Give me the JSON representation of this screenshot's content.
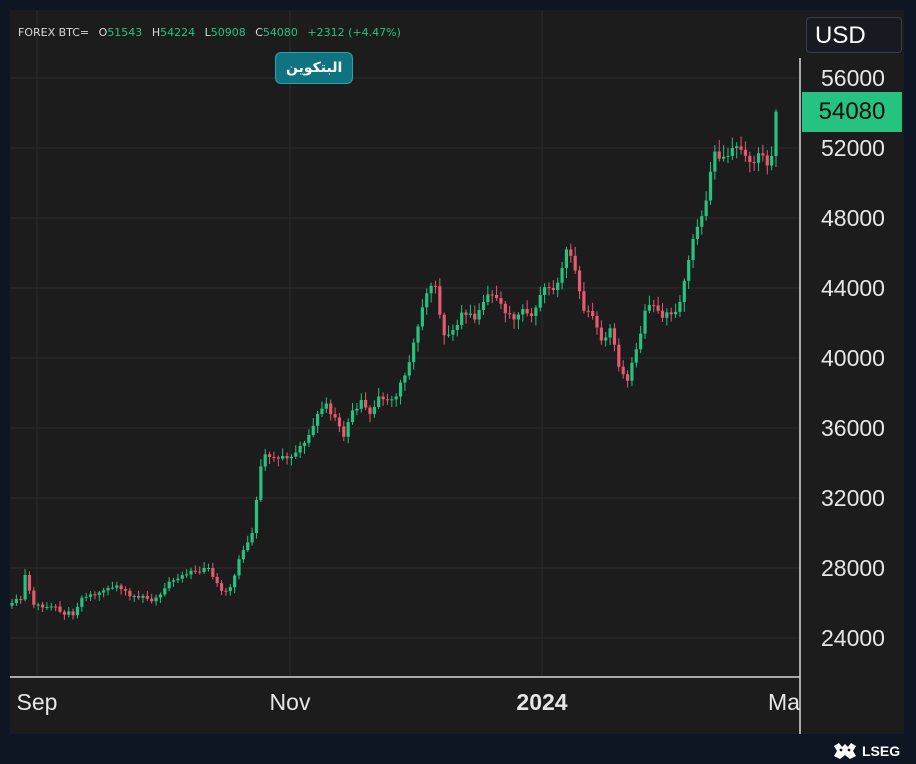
{
  "header": {
    "symbol": "FOREX BTC=",
    "open_key": "O",
    "open_value": "51543",
    "high_key": "H",
    "high_value": "54224",
    "low_key": "L",
    "low_value": "50908",
    "close_key": "C",
    "close_value": "54080",
    "change": "+2312 (+4.47%)"
  },
  "badge": {
    "label": "البتكوين"
  },
  "currency": {
    "label": "USD"
  },
  "last_price": {
    "label": "54080"
  },
  "footer": {
    "brand": "LSEG"
  },
  "colors": {
    "up": "#26c281",
    "down": "#e35a71",
    "background": "#1c1c1c",
    "grid": "#2b2b2b",
    "axis_text": "#e6e6e6",
    "badge": "#0f7480"
  },
  "chart_data": {
    "type": "candlestick",
    "title": "",
    "xlabel": "",
    "ylabel": "",
    "x_ticks": [
      "Sep",
      "Nov",
      "2024",
      "Ma"
    ],
    "y_ticks": [
      24000,
      28000,
      32000,
      36000,
      40000,
      44000,
      48000,
      52000,
      56000
    ],
    "ylim": [
      22000,
      58000
    ],
    "grid": true,
    "y_axis_position": "right",
    "last_value": 54080,
    "approx_days": 185,
    "anchor_closes": [
      {
        "day": 0,
        "close": 26000
      },
      {
        "day": 2,
        "close": 26200
      },
      {
        "day": 3,
        "close": 27600
      },
      {
        "day": 5,
        "close": 25900
      },
      {
        "day": 9,
        "close": 25800
      },
      {
        "day": 11,
        "close": 25500
      },
      {
        "day": 14,
        "close": 25300
      },
      {
        "day": 16,
        "close": 26300
      },
      {
        "day": 20,
        "close": 26600
      },
      {
        "day": 24,
        "close": 27000
      },
      {
        "day": 28,
        "close": 26400
      },
      {
        "day": 32,
        "close": 26100
      },
      {
        "day": 37,
        "close": 27300
      },
      {
        "day": 42,
        "close": 27800
      },
      {
        "day": 45,
        "close": 28000
      },
      {
        "day": 48,
        "close": 26700
      },
      {
        "day": 50,
        "close": 26900
      },
      {
        "day": 52,
        "close": 28500
      },
      {
        "day": 55,
        "close": 30000
      },
      {
        "day": 57,
        "close": 33800
      },
      {
        "day": 58,
        "close": 34500
      },
      {
        "day": 62,
        "close": 34400
      },
      {
        "day": 65,
        "close": 34600
      },
      {
        "day": 68,
        "close": 35600
      },
      {
        "day": 70,
        "close": 36800
      },
      {
        "day": 72,
        "close": 37400
      },
      {
        "day": 74,
        "close": 36600
      },
      {
        "day": 76,
        "close": 35500
      },
      {
        "day": 78,
        "close": 37000
      },
      {
        "day": 80,
        "close": 37600
      },
      {
        "day": 82,
        "close": 36800
      },
      {
        "day": 84,
        "close": 37800
      },
      {
        "day": 86,
        "close": 37600
      },
      {
        "day": 88,
        "close": 37800
      },
      {
        "day": 90,
        "close": 39000
      },
      {
        "day": 93,
        "close": 41800
      },
      {
        "day": 95,
        "close": 43700
      },
      {
        "day": 97,
        "close": 44100
      },
      {
        "day": 99,
        "close": 41300
      },
      {
        "day": 101,
        "close": 41600
      },
      {
        "day": 103,
        "close": 42600
      },
      {
        "day": 106,
        "close": 42200
      },
      {
        "day": 108,
        "close": 43200
      },
      {
        "day": 110,
        "close": 43600
      },
      {
        "day": 112,
        "close": 43100
      },
      {
        "day": 115,
        "close": 42200
      },
      {
        "day": 117,
        "close": 42800
      },
      {
        "day": 119,
        "close": 42400
      },
      {
        "day": 121,
        "close": 43600
      },
      {
        "day": 123,
        "close": 44000
      },
      {
        "day": 125,
        "close": 44300
      },
      {
        "day": 127,
        "close": 46200
      },
      {
        "day": 129,
        "close": 45000
      },
      {
        "day": 131,
        "close": 42700
      },
      {
        "day": 133,
        "close": 42400
      },
      {
        "day": 135,
        "close": 41000
      },
      {
        "day": 137,
        "close": 41700
      },
      {
        "day": 139,
        "close": 39500
      },
      {
        "day": 141,
        "close": 38700
      },
      {
        "day": 143,
        "close": 40500
      },
      {
        "day": 145,
        "close": 42700
      },
      {
        "day": 147,
        "close": 43000
      },
      {
        "day": 149,
        "close": 42300
      },
      {
        "day": 151,
        "close": 42500
      },
      {
        "day": 153,
        "close": 43200
      },
      {
        "day": 155,
        "close": 45600
      },
      {
        "day": 157,
        "close": 47500
      },
      {
        "day": 159,
        "close": 49000
      },
      {
        "day": 161,
        "close": 51800
      },
      {
        "day": 163,
        "close": 51500
      },
      {
        "day": 165,
        "close": 52000
      },
      {
        "day": 167,
        "close": 51900
      },
      {
        "day": 169,
        "close": 51200
      },
      {
        "day": 171,
        "close": 51700
      },
      {
        "day": 173,
        "close": 51000
      },
      {
        "day": 174,
        "close": 51543
      },
      {
        "day": 175,
        "close": 54080
      }
    ]
  }
}
